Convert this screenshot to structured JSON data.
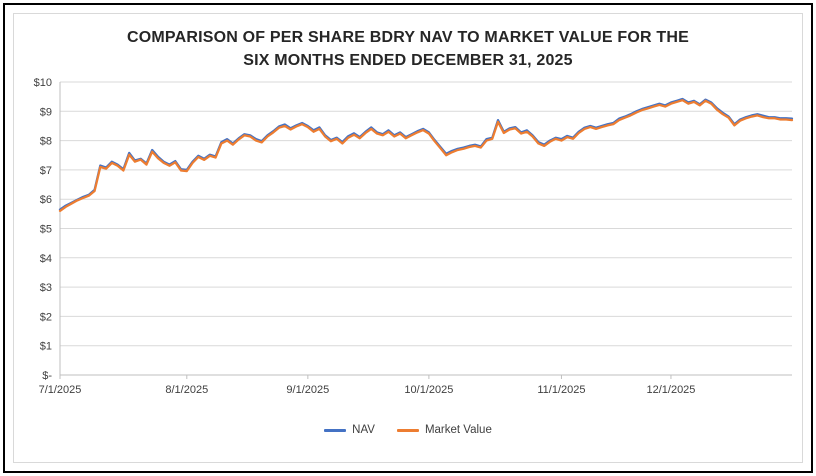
{
  "title": {
    "line1": "COMPARISON OF PER SHARE BDRY NAV TO MARKET VALUE FOR THE",
    "line2": "SIX MONTHS ENDED DECEMBER 31, 2025"
  },
  "legend": {
    "items": [
      {
        "label": "NAV",
        "color": "#4472C4"
      },
      {
        "label": "Market Value",
        "color": "#ED7D31"
      }
    ]
  },
  "chart_data": {
    "type": "line",
    "title": "COMPARISON OF PER SHARE BDRY NAV TO MARKET VALUE FOR THE SIX MONTHS ENDED DECEMBER 31, 2025",
    "xlabel": "",
    "ylabel": "",
    "x_description": "Daily trading days from 7/1/2025 through 12/31/2025",
    "x_tick_labels": [
      "7/1/2025",
      "8/1/2025",
      "9/1/2025",
      "10/1/2025",
      "11/1/2025",
      "12/1/2025"
    ],
    "x_tick_indices": [
      0,
      22,
      43,
      64,
      87,
      106
    ],
    "y_ticks": [
      "$-",
      "$1",
      "$2",
      "$3",
      "$4",
      "$5",
      "$6",
      "$7",
      "$8",
      "$9",
      "$10"
    ],
    "ylim": [
      0,
      10
    ],
    "grid": "horizontal",
    "legend_position": "bottom",
    "colors": {
      "gridline": "#D9D9D9",
      "axis": "#BFBFBF",
      "tick_text": "#404040"
    },
    "series": [
      {
        "name": "NAV",
        "color": "#4472C4",
        "values": [
          5.65,
          5.78,
          5.88,
          5.98,
          6.08,
          6.15,
          6.32,
          7.15,
          7.08,
          7.28,
          7.18,
          7.02,
          7.58,
          7.32,
          7.38,
          7.22,
          7.68,
          7.45,
          7.28,
          7.18,
          7.3,
          7.02,
          7.0,
          7.28,
          7.48,
          7.38,
          7.52,
          7.46,
          7.95,
          8.05,
          7.9,
          8.08,
          8.22,
          8.18,
          8.05,
          7.98,
          8.18,
          8.32,
          8.48,
          8.55,
          8.42,
          8.52,
          8.6,
          8.5,
          8.35,
          8.45,
          8.18,
          8.02,
          8.1,
          7.95,
          8.15,
          8.25,
          8.12,
          8.3,
          8.45,
          8.28,
          8.22,
          8.35,
          8.18,
          8.28,
          8.12,
          8.22,
          8.32,
          8.4,
          8.28,
          8.02,
          7.78,
          7.55,
          7.65,
          7.72,
          7.76,
          7.82,
          7.86,
          7.8,
          8.05,
          8.1,
          8.7,
          8.3,
          8.42,
          8.46,
          8.28,
          8.35,
          8.18,
          7.95,
          7.86,
          8.0,
          8.1,
          8.05,
          8.16,
          8.1,
          8.3,
          8.44,
          8.5,
          8.44,
          8.5,
          8.56,
          8.6,
          8.75,
          8.82,
          8.9,
          9.0,
          9.08,
          9.14,
          9.2,
          9.26,
          9.2,
          9.3,
          9.36,
          9.42,
          9.3,
          9.36,
          9.24,
          9.4,
          9.3,
          9.1,
          8.95,
          8.82,
          8.56,
          8.72,
          8.8,
          8.86,
          8.9,
          8.85,
          8.8,
          8.8,
          8.76,
          8.76,
          8.75
        ]
      },
      {
        "name": "Market Value",
        "color": "#ED7D31",
        "values": [
          5.6,
          5.74,
          5.85,
          5.96,
          6.04,
          6.12,
          6.28,
          7.1,
          7.04,
          7.24,
          7.14,
          6.98,
          7.52,
          7.28,
          7.35,
          7.18,
          7.62,
          7.4,
          7.24,
          7.14,
          7.26,
          6.98,
          6.96,
          7.24,
          7.44,
          7.34,
          7.48,
          7.42,
          7.9,
          8.0,
          7.86,
          8.04,
          8.18,
          8.14,
          8.0,
          7.94,
          8.14,
          8.28,
          8.44,
          8.5,
          8.38,
          8.48,
          8.56,
          8.46,
          8.3,
          8.4,
          8.14,
          7.98,
          8.06,
          7.9,
          8.1,
          8.2,
          8.08,
          8.26,
          8.4,
          8.24,
          8.18,
          8.3,
          8.14,
          8.24,
          8.08,
          8.18,
          8.28,
          8.36,
          8.24,
          7.98,
          7.74,
          7.5,
          7.6,
          7.68,
          7.72,
          7.78,
          7.82,
          7.76,
          8.0,
          8.06,
          8.64,
          8.26,
          8.38,
          8.42,
          8.24,
          8.3,
          8.14,
          7.9,
          7.82,
          7.96,
          8.06,
          8.0,
          8.12,
          8.06,
          8.26,
          8.4,
          8.46,
          8.4,
          8.46,
          8.52,
          8.56,
          8.7,
          8.78,
          8.86,
          8.96,
          9.04,
          9.1,
          9.16,
          9.22,
          9.16,
          9.26,
          9.32,
          9.38,
          9.26,
          9.32,
          9.2,
          9.36,
          9.26,
          9.05,
          8.9,
          8.78,
          8.52,
          8.68,
          8.76,
          8.82,
          8.86,
          8.8,
          8.76,
          8.76,
          8.72,
          8.72,
          8.7
        ]
      }
    ]
  }
}
